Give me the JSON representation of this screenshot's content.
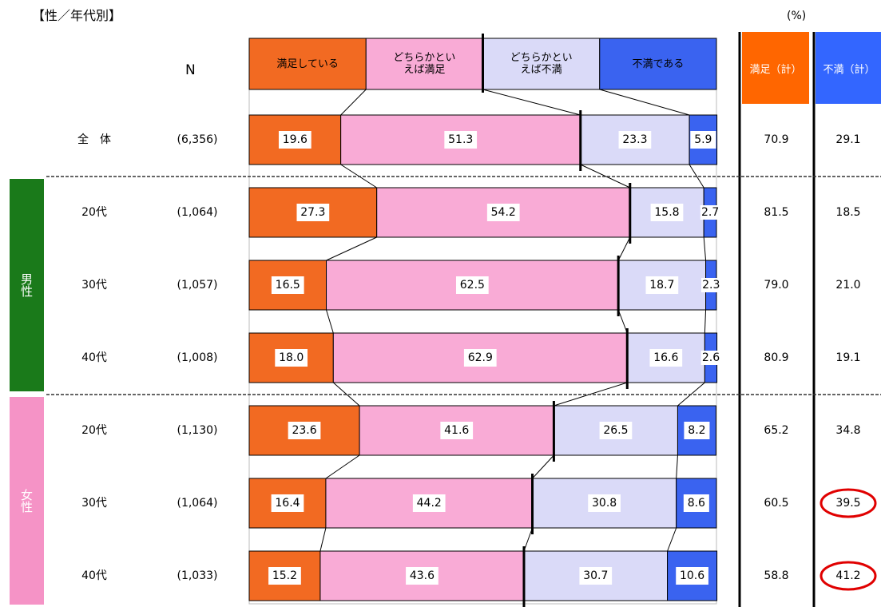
{
  "chart_data": {
    "type": "bar",
    "stacked": true,
    "orientation": "horizontal",
    "title": "【性／年代別】",
    "unit": "(%)",
    "n_header": "N",
    "categories": [
      "全　体",
      "20代",
      "30代",
      "40代",
      "20代",
      "30代",
      "40代"
    ],
    "n": [
      "(6,356)",
      "(1,064)",
      "(1,057)",
      "(1,008)",
      "(1,130)",
      "(1,064)",
      "(1,033)"
    ],
    "groups": [
      {
        "name": "男性",
        "color": "#1a7a1a",
        "rows": [
          1,
          2,
          3
        ]
      },
      {
        "name": "女性",
        "color": "#f593c6",
        "rows": [
          4,
          5,
          6
        ]
      }
    ],
    "xlim": [
      0,
      100
    ],
    "series": [
      {
        "name": "満足している",
        "color": "#f26a22",
        "values": [
          19.6,
          27.3,
          16.5,
          18.0,
          23.6,
          16.4,
          15.2
        ],
        "value_labels": [
          "19.6",
          "27.3",
          "16.5",
          "18.0",
          "23.6",
          "16.4",
          "15.2"
        ]
      },
      {
        "name": "どちらかといえば満足",
        "color": "#f9abd6",
        "values": [
          51.3,
          54.2,
          62.5,
          62.9,
          41.6,
          44.2,
          43.6
        ],
        "value_labels": [
          "51.3",
          "54.2",
          "62.5",
          "62.9",
          "41.6",
          "44.2",
          "43.6"
        ]
      },
      {
        "name": "どちらかといえば不満",
        "color": "#dadaf8",
        "values": [
          23.3,
          15.8,
          18.7,
          16.6,
          26.5,
          30.8,
          30.7
        ],
        "value_labels": [
          "23.3",
          "15.8",
          "18.7",
          "16.6",
          "26.5",
          "30.8",
          "30.7"
        ]
      },
      {
        "name": "不満である",
        "color": "#3a63f0",
        "values": [
          5.9,
          2.7,
          2.3,
          2.6,
          8.2,
          8.6,
          10.6
        ],
        "value_labels": [
          "5.9",
          "2.7",
          "2.3",
          "2.6",
          "8.2",
          "8.6",
          "10.6"
        ]
      }
    ],
    "summary": [
      {
        "name": "満足（計）",
        "color": "#ff6600",
        "values": [
          70.9,
          81.5,
          79.0,
          80.9,
          65.2,
          60.5,
          58.8
        ],
        "value_labels": [
          "70.9",
          "81.5",
          "79.0",
          "80.9",
          "65.2",
          "60.5",
          "58.8"
        ]
      },
      {
        "name": "不満（計）",
        "color": "#3366ff",
        "values": [
          29.1,
          18.5,
          21.0,
          19.1,
          34.8,
          39.5,
          41.2
        ],
        "value_labels": [
          "29.1",
          "18.5",
          "21.0",
          "19.1",
          "34.8",
          "39.5",
          "41.2"
        ],
        "circled": [
          false,
          false,
          false,
          false,
          false,
          true,
          true
        ],
        "circle_color": "#e00000"
      }
    ]
  }
}
